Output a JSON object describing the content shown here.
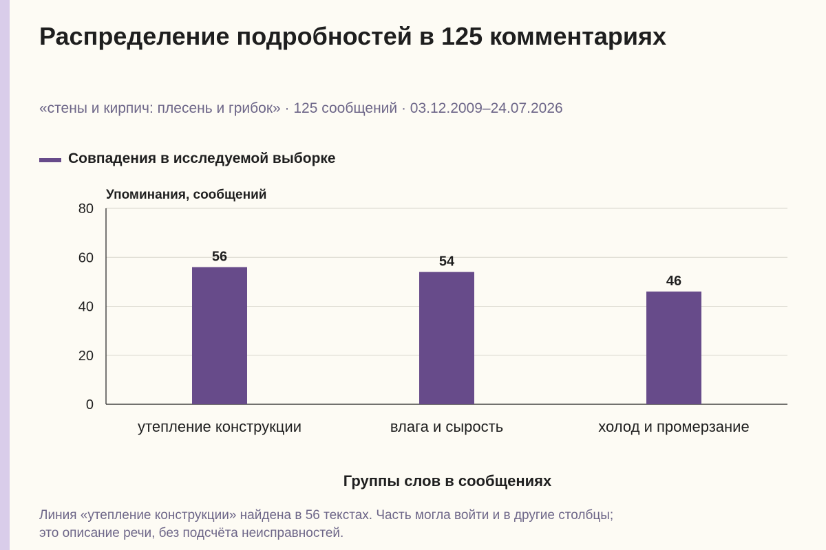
{
  "title": "Распределение подробностей в 125 комментариях",
  "subtitle": "«стены и кирпич: плесень и грибок» · 125 сообщений · 03.12.2009–24.07.2026",
  "legend": {
    "label": "Совпадения в исследуемой выборке"
  },
  "colors": {
    "bar": "#674b8a",
    "background": "#fdfbf4",
    "muted_text": "#6d6688",
    "accent_strip": "#d9cdea"
  },
  "note": {
    "line1": "Линия «утепление конструкции» найдена в 56 текстах. Часть могла войти и в другие столбцы;",
    "line2": "это описание речи, без подсчёта неисправностей."
  },
  "chart_data": {
    "type": "bar",
    "categories": [
      "утепление конструкции",
      "влага и сырость",
      "холод и промерзание"
    ],
    "series": [
      {
        "name": "Совпадения в исследуемой выборке",
        "values": [
          56,
          54,
          46
        ]
      }
    ],
    "xlabel": "Группы слов в сообщениях",
    "ylabel": "Упоминания, сообщений",
    "ylim": [
      0,
      80
    ],
    "yticks": [
      0,
      20,
      40,
      60,
      80
    ],
    "grid": true,
    "legend_position": "top-left",
    "data_labels": true
  }
}
